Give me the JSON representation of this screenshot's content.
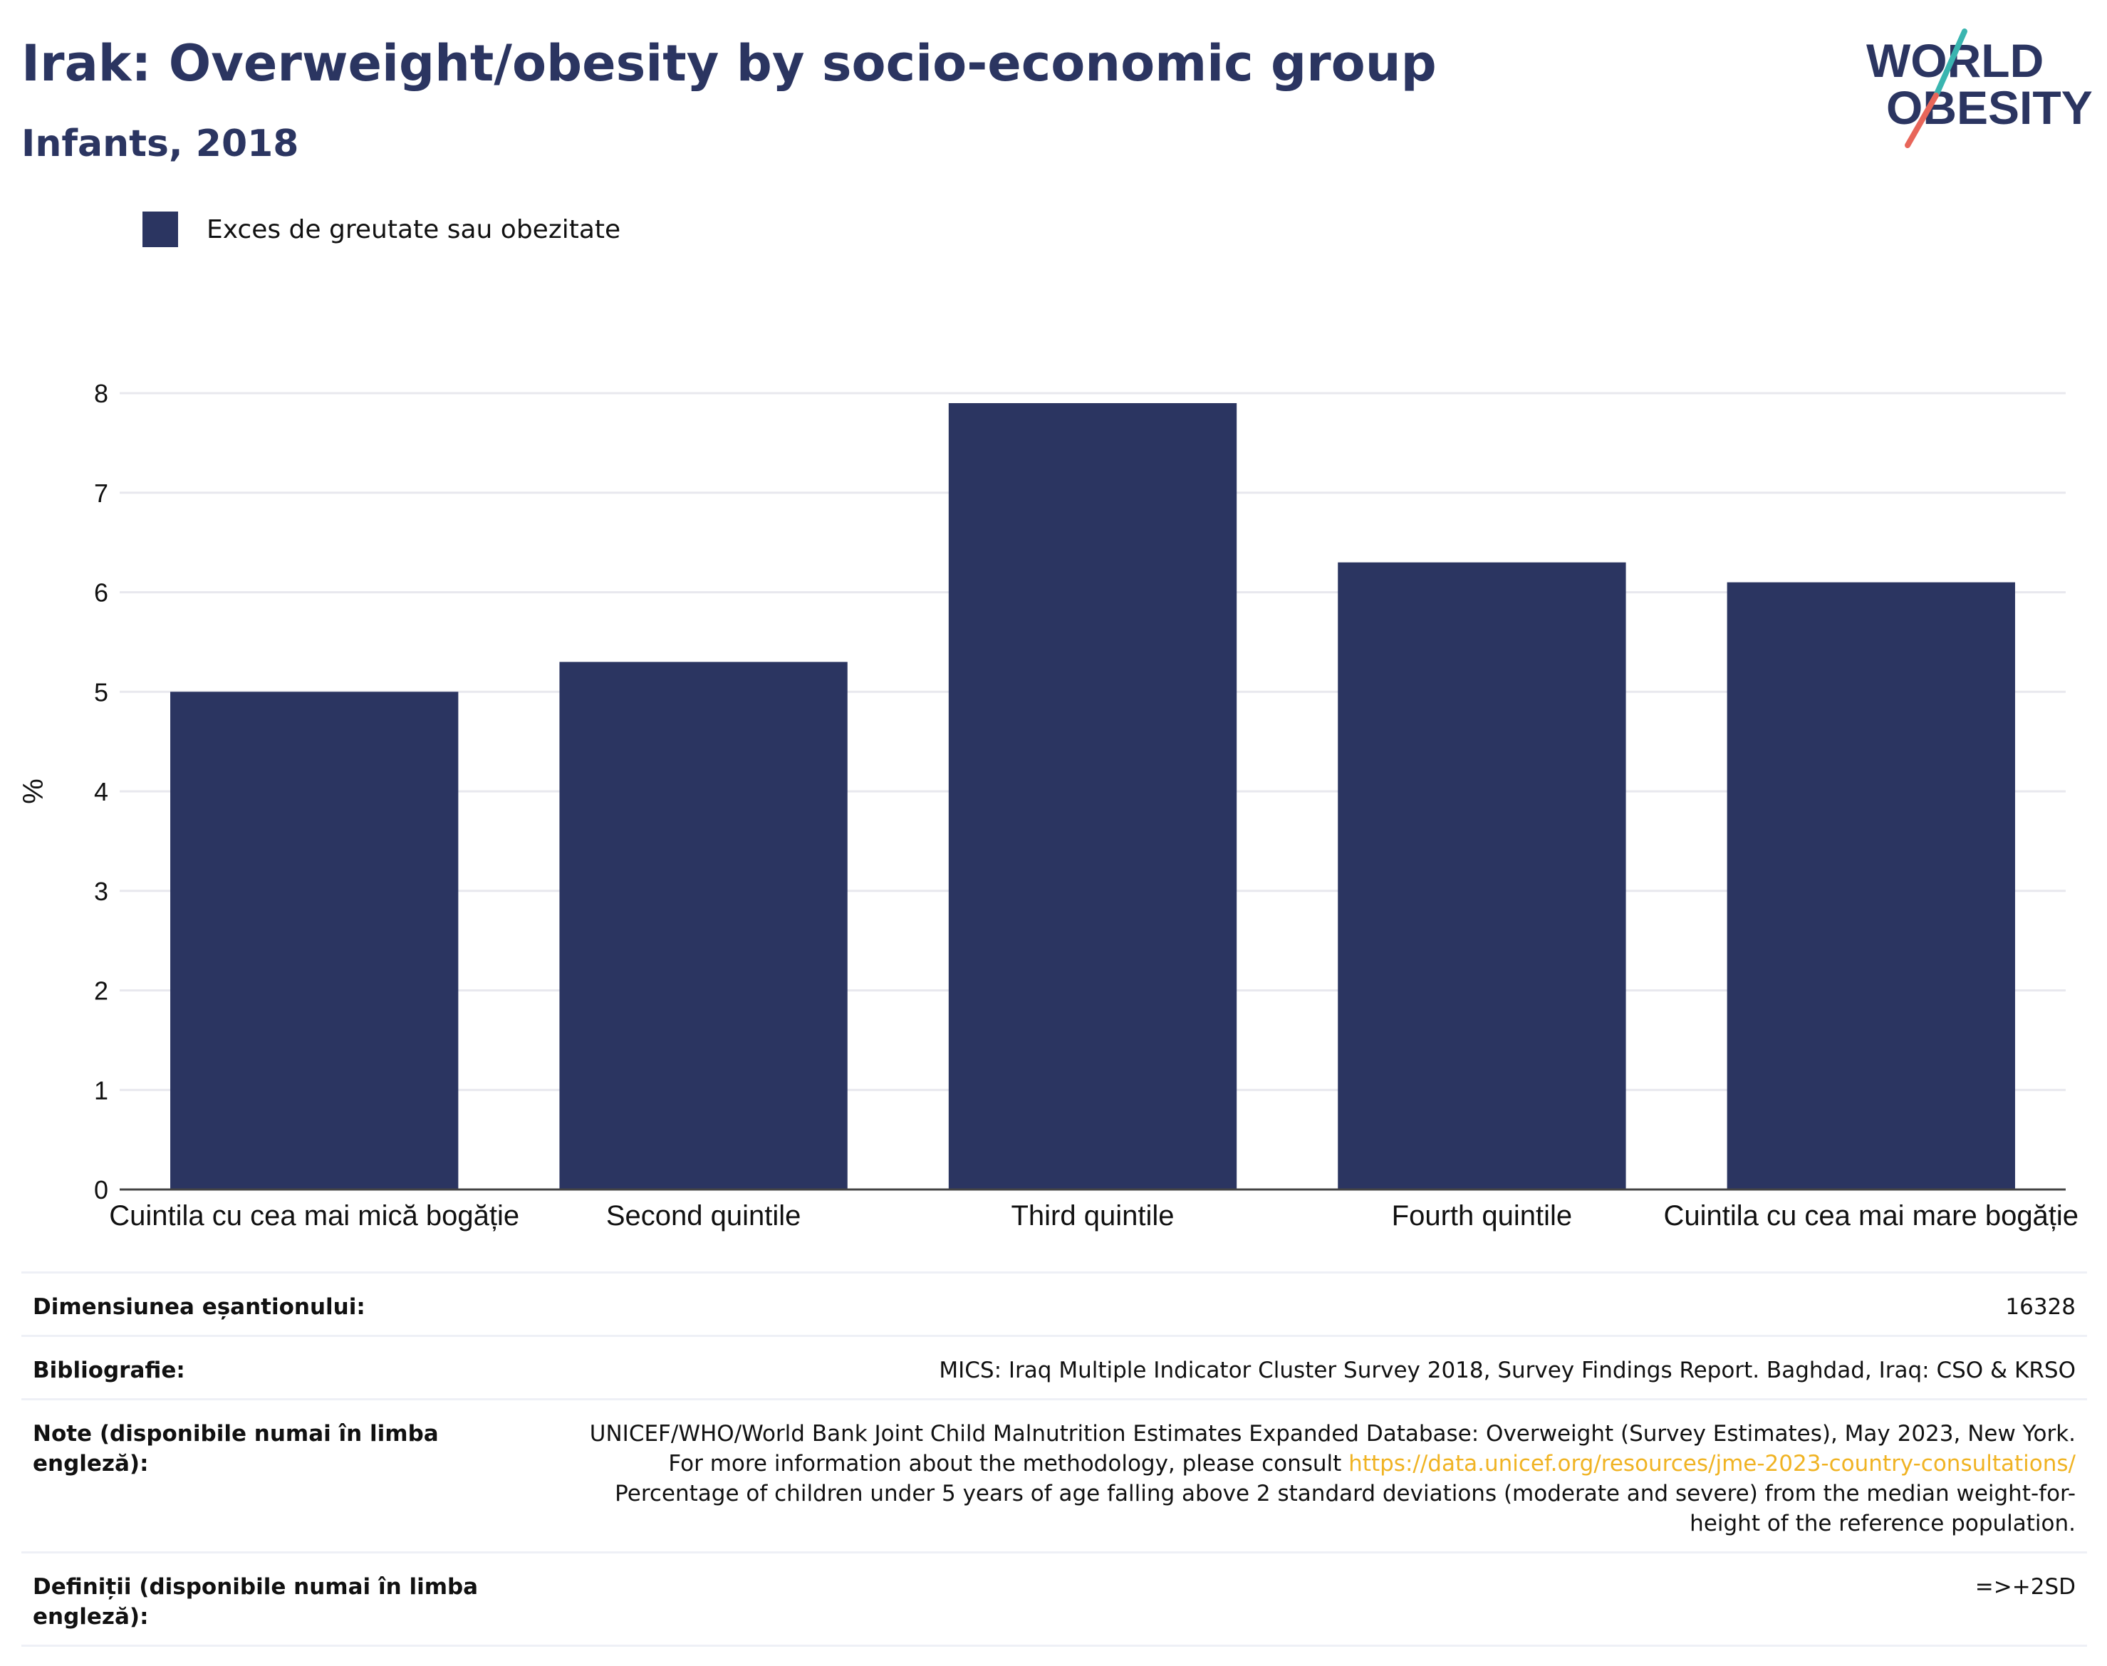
{
  "header": {
    "title": "Irak: Overweight/obesity by socio-economic group",
    "subtitle": "Infants, 2018"
  },
  "logo": {
    "line1": "WORLD",
    "line2": "OBESITY"
  },
  "colors": {
    "bar": "#2b3561",
    "title": "#2b3561",
    "link": "#f0b323",
    "logo_teal": "#3ab5b0",
    "logo_coral": "#e8665a"
  },
  "chart_data": {
    "type": "bar",
    "categories": [
      "Cuintila cu cea mai mică bogăție",
      "Second quintile",
      "Third quintile",
      "Fourth quintile",
      "Cuintila cu cea mai mare bogăție"
    ],
    "series": [
      {
        "name": "Exces de greutate sau obezitate",
        "values": [
          5.0,
          5.3,
          7.9,
          6.3,
          6.1
        ]
      }
    ],
    "xlabel": "",
    "ylabel": "%",
    "ylim": [
      0,
      8
    ],
    "yticks": [
      0,
      1,
      2,
      3,
      4,
      5,
      6,
      7,
      8
    ],
    "grid": true,
    "legend": "top-left"
  },
  "info": [
    {
      "label": "Dimensiunea eșantionului:",
      "value": "16328"
    },
    {
      "label": "Bibliografie:",
      "value": "MICS: Iraq Multiple Indicator Cluster Survey 2018, Survey Findings Report. Baghdad, Iraq: CSO & KRSO"
    },
    {
      "label": "Note (disponibile numai în limba engleză):",
      "value_before": "UNICEF/WHO/World Bank Joint Child Malnutrition Estimates Expanded Database: Overweight (Survey Estimates), May 2023, New York. For more information about the methodology, please consult ",
      "link": "https://data.unicef.org/resources/jme-2023-country-consultations/",
      "value_after": " Percentage of children under 5 years of age falling above 2 standard deviations (moderate and severe) from the median weight-for-height of the reference population."
    },
    {
      "label": "Definiții (disponibile numai în limba engleză):",
      "value": "=>+2SD"
    }
  ]
}
